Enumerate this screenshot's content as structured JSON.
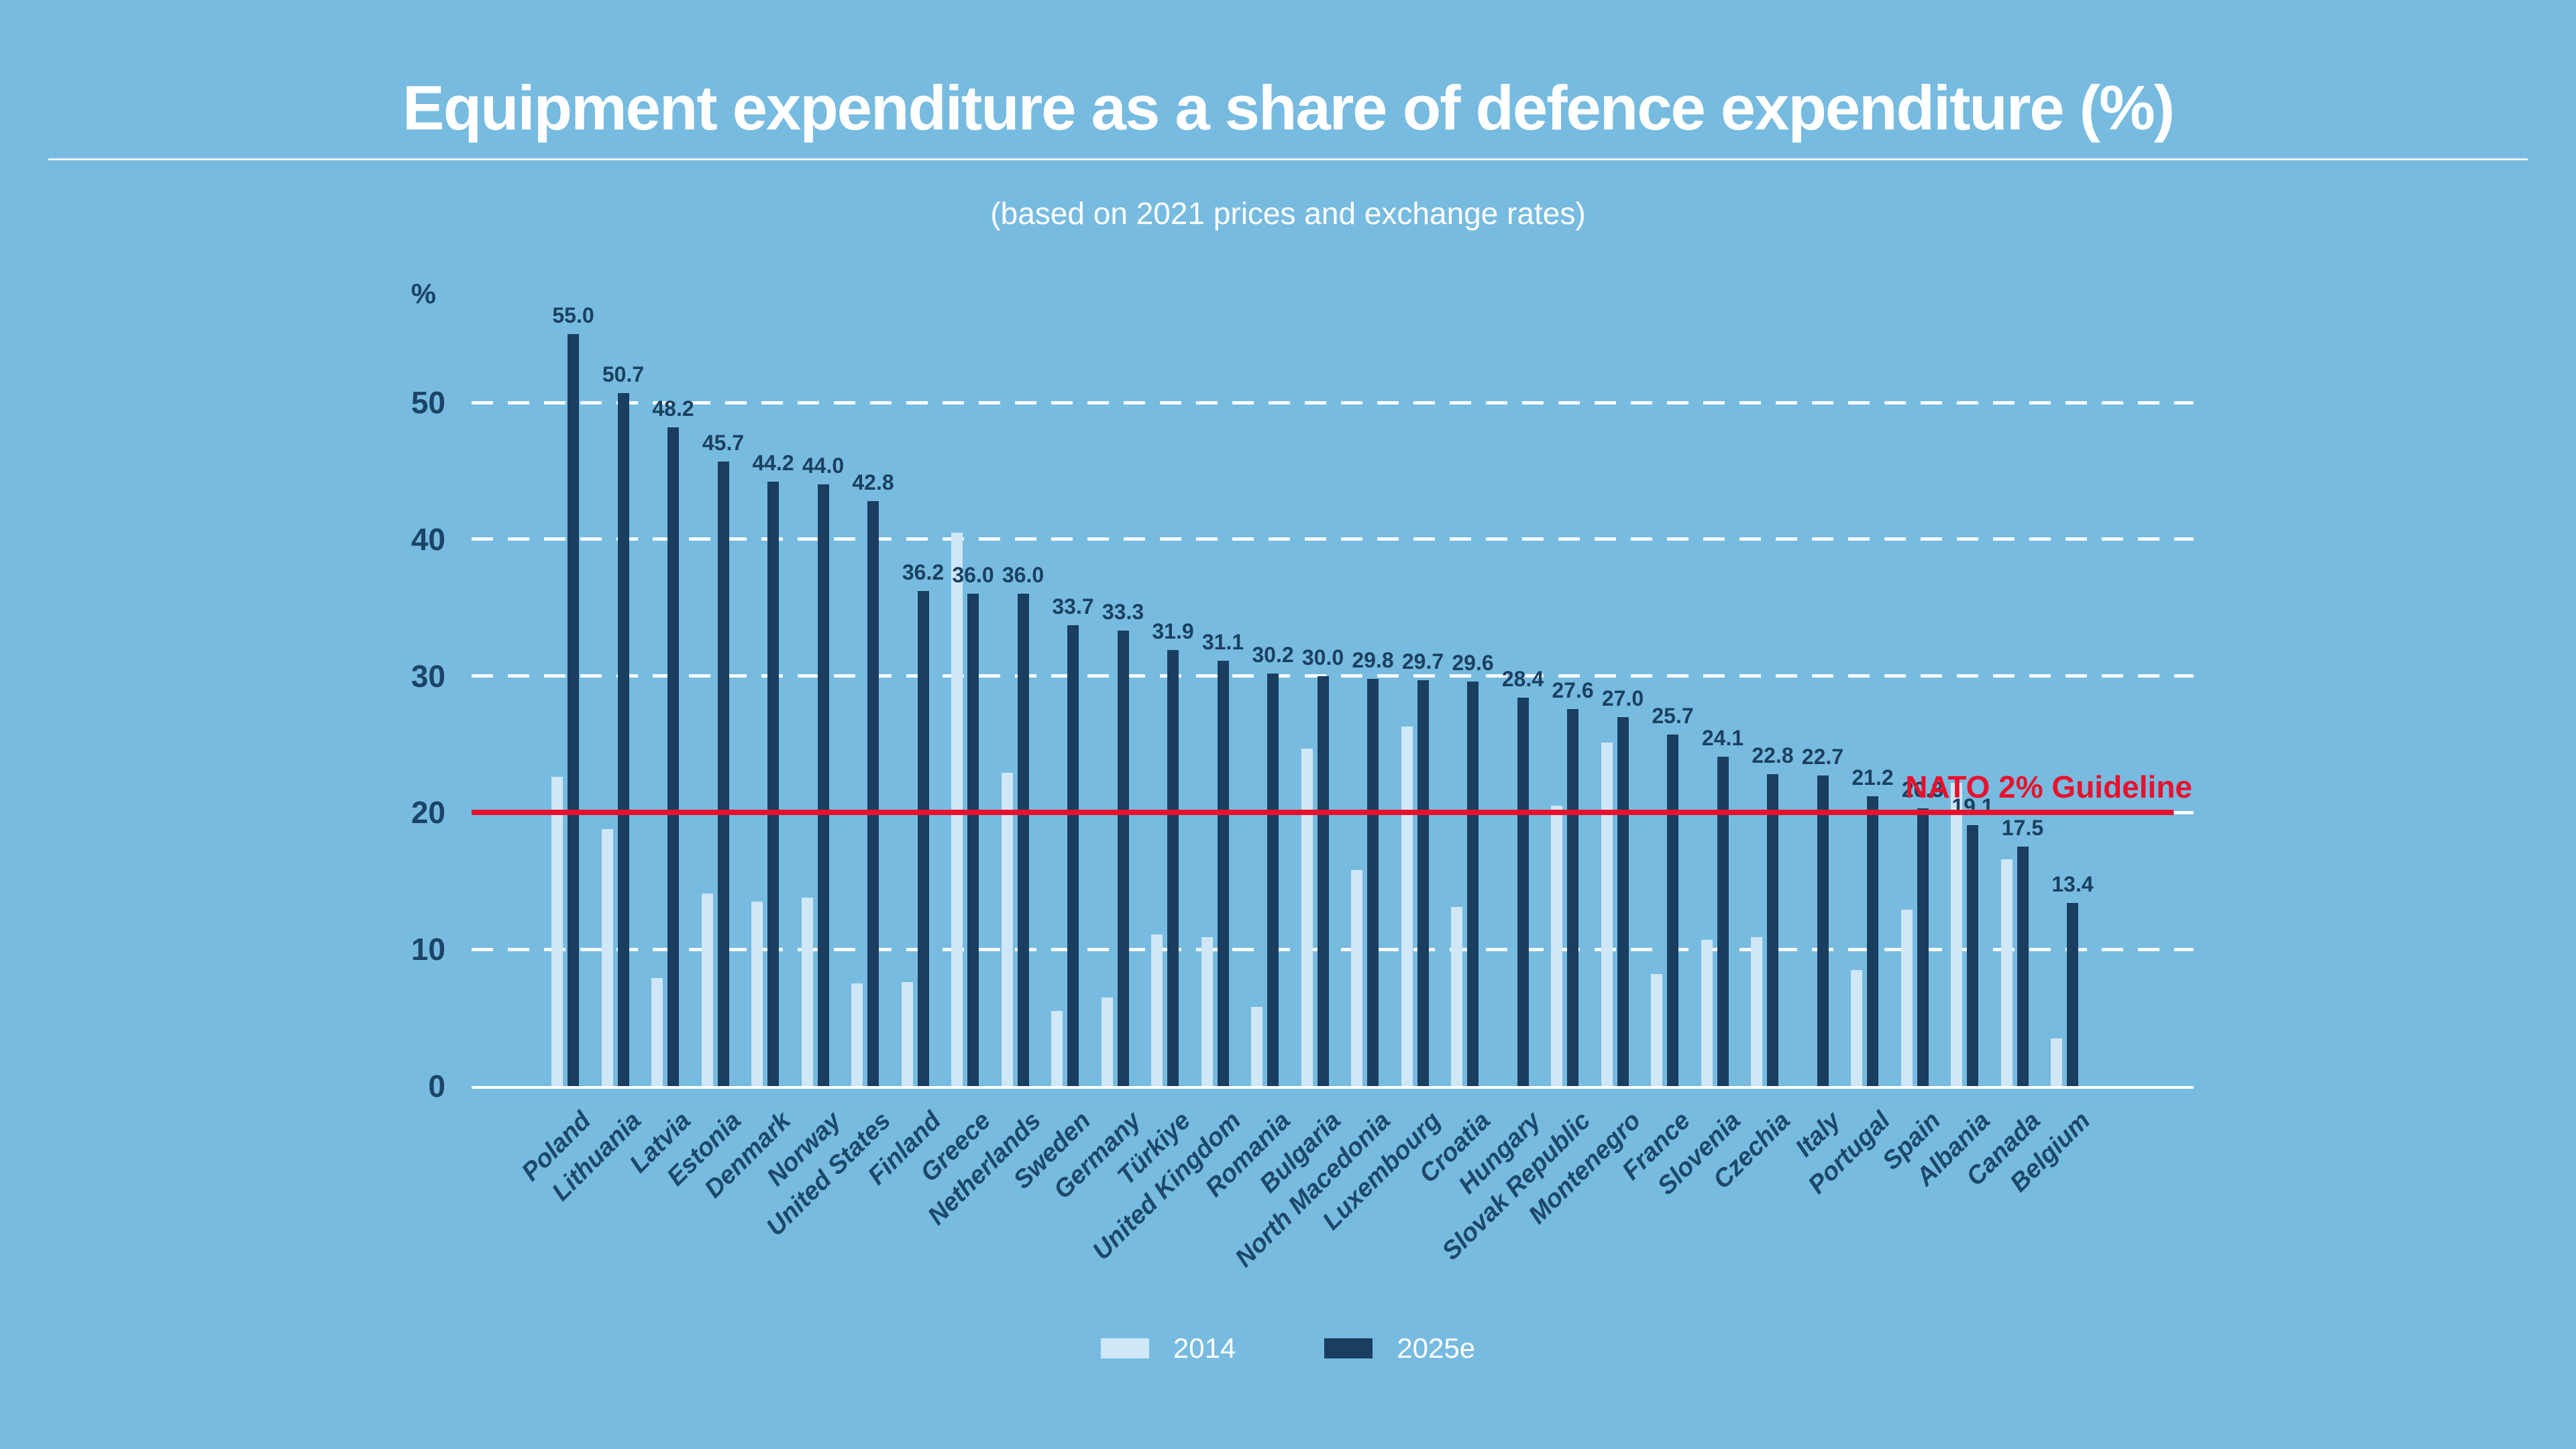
{
  "title": "Equipment expenditure as a share of defence expenditure (%)",
  "subtitle": "(based on 2021 prices and exchange rates)",
  "axis": {
    "unit_label": "%",
    "ticks": [
      0,
      10,
      20,
      30,
      40,
      50
    ]
  },
  "guideline": {
    "label": "NATO 2% Guideline",
    "value": 20,
    "color": "#e8112d"
  },
  "legend": [
    {
      "label": "2014",
      "color": "#cfe7f7"
    },
    {
      "label": "2025e",
      "color": "#1a3e5f"
    }
  ],
  "colors": {
    "background": "#77bbe0",
    "bar_2014": "#cfe7f7",
    "bar_2025e": "#1a3e5f",
    "text_light": "#ffffff",
    "text_navy": "#1b4466",
    "gridline": "#ffffff",
    "guideline_red": "#e8112d"
  },
  "chart_data": {
    "type": "bar",
    "title": "Equipment expenditure as a share of defence expenditure (%)",
    "subtitle": "(based on 2021 prices and exchange rates)",
    "ylabel": "%",
    "ylim": [
      0,
      57
    ],
    "grid": true,
    "legend_position": "bottom",
    "value_labels_on_series": "2025e",
    "categories": [
      "Poland",
      "Lithuania",
      "Latvia",
      "Estonia",
      "Denmark",
      "Norway",
      "United States",
      "Finland",
      "Greece",
      "Netherlands",
      "Sweden",
      "Germany",
      "Türkiye",
      "United Kingdom",
      "Romania",
      "Bulgaria",
      "North Macedonia",
      "Luxembourg",
      "Croatia",
      "Hungary",
      "Slovak Republic",
      "Montenegro",
      "France",
      "Slovenia",
      "Czechia",
      "Italy",
      "Portugal",
      "Spain",
      "Albania",
      "Canada",
      "Belgium"
    ],
    "series": [
      {
        "name": "2014",
        "values": [
          22.6,
          18.8,
          7.9,
          14.1,
          13.5,
          13.8,
          7.5,
          7.6,
          40.5,
          22.9,
          5.5,
          6.5,
          11.1,
          10.9,
          5.8,
          24.7,
          15.8,
          26.3,
          13.1,
          null,
          20.5,
          25.1,
          8.2,
          10.7,
          10.9,
          null,
          8.5,
          12.9,
          22.2,
          16.6,
          3.5
        ]
      },
      {
        "name": "2025e",
        "values": [
          55.0,
          50.7,
          48.2,
          45.7,
          44.2,
          44.0,
          42.8,
          36.2,
          36.0,
          36.0,
          33.7,
          33.3,
          31.9,
          31.1,
          30.2,
          30.0,
          29.8,
          29.7,
          29.6,
          28.4,
          27.6,
          27.0,
          25.7,
          24.1,
          22.8,
          22.7,
          21.2,
          20.3,
          19.1,
          17.5,
          13.4
        ]
      }
    ]
  }
}
